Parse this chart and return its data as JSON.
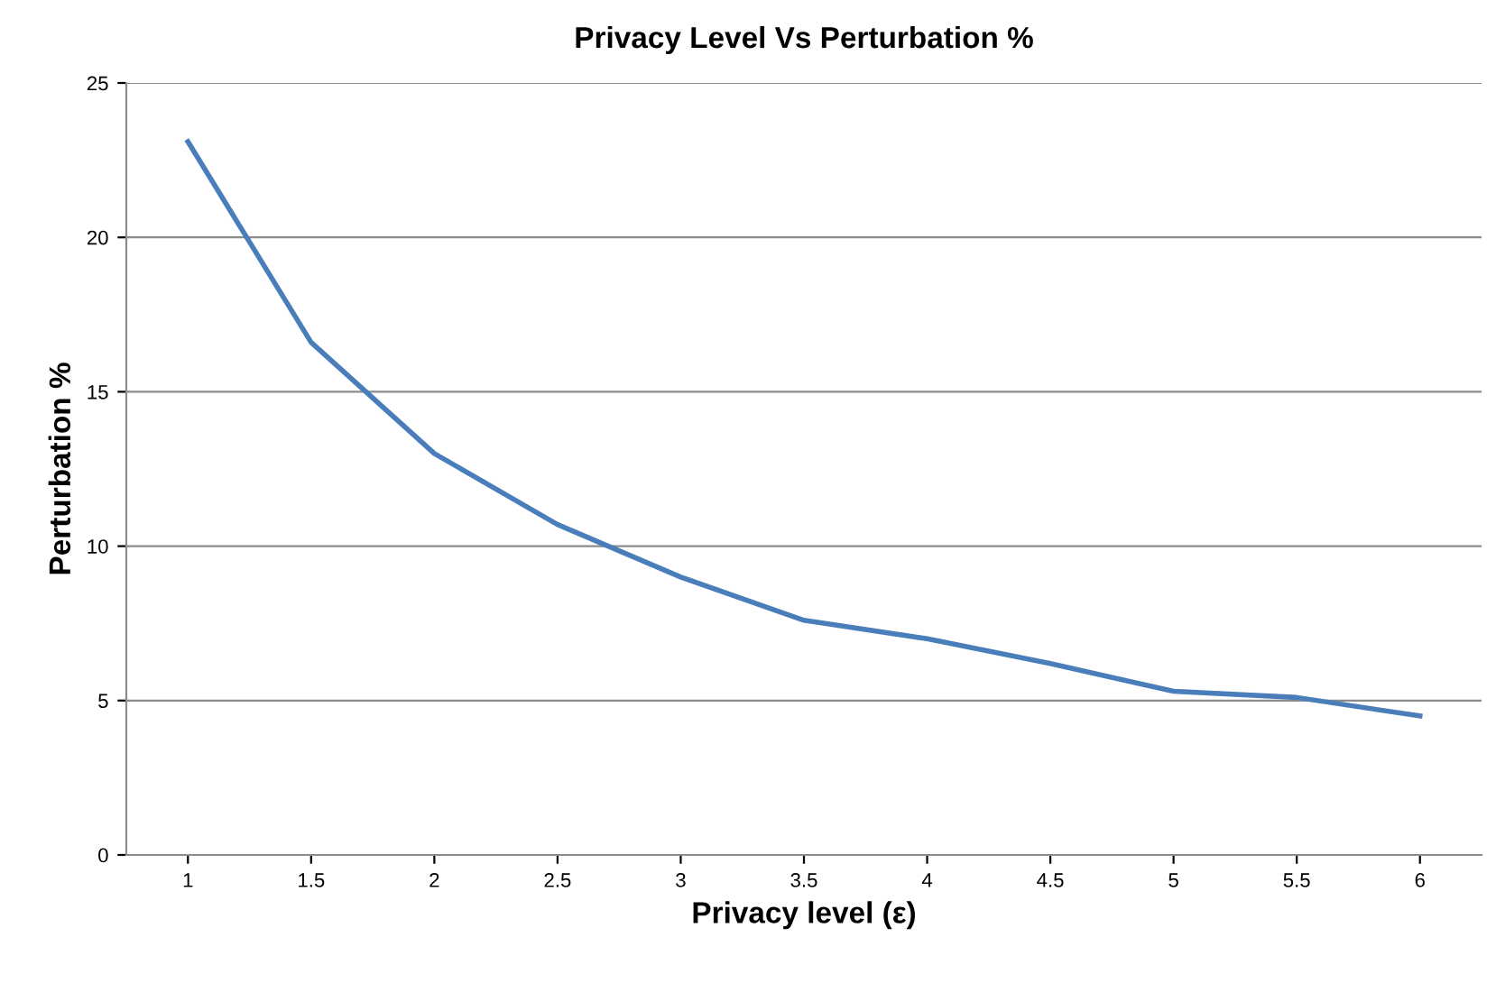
{
  "chart_data": {
    "type": "line",
    "title": "Privacy Level Vs Perturbation %",
    "xlabel": "Privacy level (ε)",
    "ylabel": "Perturbation %",
    "categories": [
      "1",
      "1.5",
      "2",
      "2.5",
      "3",
      "3.5",
      "4",
      "4.5",
      "5",
      "5.5",
      "6"
    ],
    "series": [
      {
        "color": "#4a7ebb",
        "values": [
          23.1,
          16.6,
          13.0,
          10.7,
          9.0,
          7.6,
          7.0,
          6.2,
          5.3,
          5.1,
          4.5
        ]
      }
    ],
    "ylim": [
      0,
      25
    ],
    "yticks": [
      0,
      5,
      10,
      15,
      20,
      25
    ],
    "grid": "y",
    "marker": "none",
    "line_style": "solid"
  }
}
